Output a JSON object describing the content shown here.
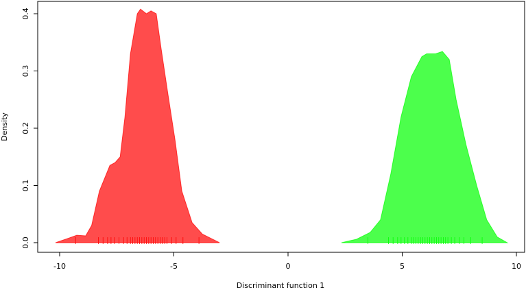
{
  "chart_data": {
    "type": "density",
    "xlabel": "Discriminant function 1",
    "ylabel": "Density",
    "xlim": [
      -10.96,
      10.36
    ],
    "ylim": [
      -0.0168,
      0.4216
    ],
    "xticks": [
      -10,
      -5,
      0,
      5,
      10
    ],
    "yticks": [
      {
        "value": 0,
        "label": "0.0"
      },
      0.1,
      0.2,
      0.3,
      0.4
    ],
    "opacity": 0.7,
    "series": [
      {
        "color": "#ff0000",
        "x": [
          -10.18,
          -9.6,
          -9.25,
          -8.86,
          -8.6,
          -8.26,
          -7.8,
          -7.57,
          -7.35,
          -7.14,
          -6.9,
          -6.6,
          -6.46,
          -6.2,
          -6.0,
          -5.77,
          -5.56,
          -5.26,
          -4.95,
          -4.65,
          -4.2,
          -3.75,
          -3.0
        ],
        "values": [
          0,
          0.008,
          0.013,
          0.012,
          0.03,
          0.09,
          0.135,
          0.14,
          0.15,
          0.22,
          0.33,
          0.4,
          0.408,
          0.4,
          0.405,
          0.4,
          0.34,
          0.26,
          0.18,
          0.09,
          0.035,
          0.015,
          0
        ],
        "rug": [
          -9.3,
          -8.3,
          -8.1,
          -7.9,
          -7.75,
          -7.6,
          -7.4,
          -7.2,
          -7.05,
          -6.9,
          -6.8,
          -6.7,
          -6.6,
          -6.5,
          -6.4,
          -6.3,
          -6.2,
          -6.1,
          -6.0,
          -5.9,
          -5.8,
          -5.7,
          -5.6,
          -5.5,
          -5.4,
          -5.3,
          -5.1,
          -4.9,
          -4.6,
          -3.9
        ]
      },
      {
        "color": "#00ff00",
        "x": [
          2.34,
          3.0,
          3.6,
          4.05,
          4.5,
          4.95,
          5.4,
          5.86,
          6.07,
          6.46,
          6.76,
          7.06,
          7.36,
          7.8,
          8.26,
          8.7,
          9.16,
          9.6
        ],
        "values": [
          0,
          0.006,
          0.018,
          0.04,
          0.12,
          0.22,
          0.29,
          0.325,
          0.33,
          0.33,
          0.334,
          0.32,
          0.25,
          0.17,
          0.1,
          0.04,
          0.01,
          0
        ],
        "rug": [
          3.5,
          4.4,
          4.6,
          4.8,
          4.95,
          5.1,
          5.25,
          5.4,
          5.5,
          5.6,
          5.7,
          5.8,
          5.9,
          6.0,
          6.1,
          6.2,
          6.3,
          6.4,
          6.5,
          6.6,
          6.7,
          6.8,
          6.9,
          7.0,
          7.15,
          7.3,
          7.5,
          7.7,
          8.0,
          8.5
        ]
      }
    ]
  }
}
